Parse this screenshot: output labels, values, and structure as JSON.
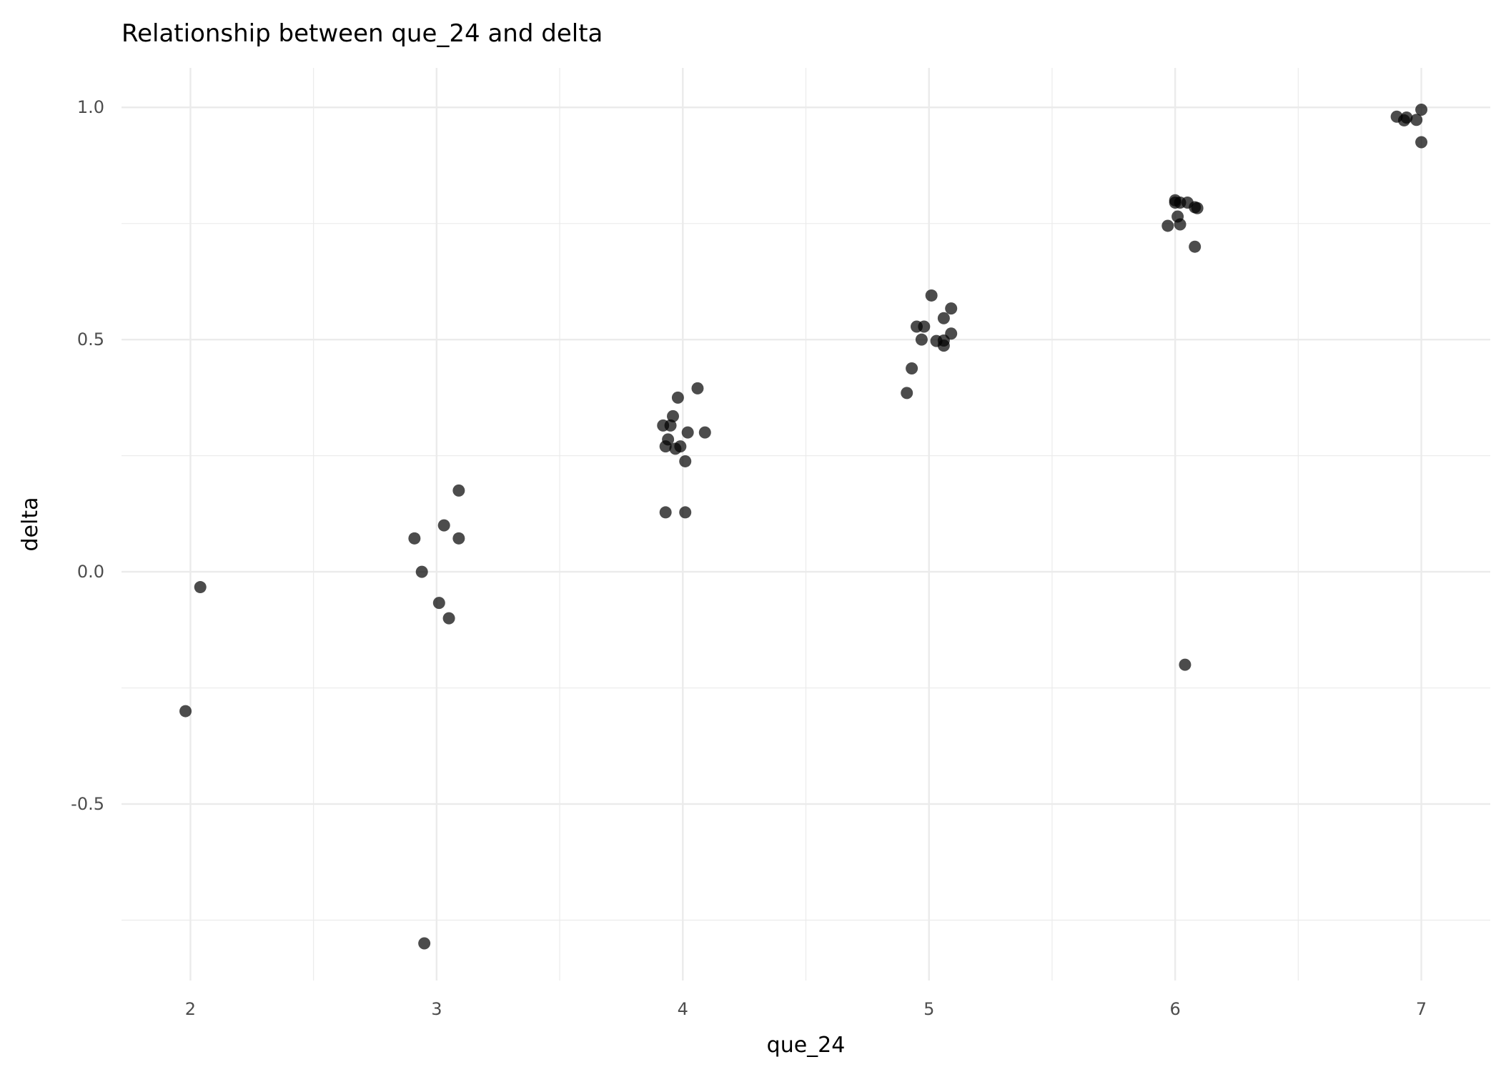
{
  "chart_data": {
    "type": "scatter",
    "title": "Relationship between que_24 and delta",
    "xlabel": "que_24",
    "ylabel": "delta",
    "xlim": [
      1.72,
      7.28
    ],
    "ylim": [
      -0.88,
      1.085
    ],
    "x_ticks": [
      2,
      3,
      4,
      5,
      6,
      7
    ],
    "x_tick_labels": [
      "2",
      "3",
      "4",
      "5",
      "6",
      "7"
    ],
    "y_ticks": [
      -0.5,
      0.0,
      0.5,
      1.0
    ],
    "y_tick_labels": [
      "-0.5",
      "0.0",
      "0.5",
      "1.0"
    ],
    "x_minor_ticks": [
      2.5,
      3.5,
      4.5,
      5.5,
      6.5
    ],
    "y_minor_ticks": [
      -0.75,
      -0.25,
      0.25,
      0.75
    ],
    "grid": true,
    "point_color": "#000000",
    "point_opacity": 0.7,
    "points": [
      {
        "x": 1.98,
        "y": -0.3
      },
      {
        "x": 2.04,
        "y": -0.033
      },
      {
        "x": 2.91,
        "y": 0.072
      },
      {
        "x": 2.94,
        "y": 0.0
      },
      {
        "x": 2.95,
        "y": -0.8
      },
      {
        "x": 3.01,
        "y": -0.067
      },
      {
        "x": 3.03,
        "y": 0.1
      },
      {
        "x": 3.05,
        "y": -0.1
      },
      {
        "x": 3.09,
        "y": 0.175
      },
      {
        "x": 3.09,
        "y": 0.072
      },
      {
        "x": 3.92,
        "y": 0.315
      },
      {
        "x": 3.93,
        "y": 0.27
      },
      {
        "x": 3.93,
        "y": 0.128
      },
      {
        "x": 3.94,
        "y": 0.285
      },
      {
        "x": 3.95,
        "y": 0.315
      },
      {
        "x": 3.96,
        "y": 0.335
      },
      {
        "x": 3.97,
        "y": 0.265
      },
      {
        "x": 3.98,
        "y": 0.375
      },
      {
        "x": 3.99,
        "y": 0.27
      },
      {
        "x": 4.01,
        "y": 0.128
      },
      {
        "x": 4.01,
        "y": 0.238
      },
      {
        "x": 4.02,
        "y": 0.3
      },
      {
        "x": 4.06,
        "y": 0.395
      },
      {
        "x": 4.09,
        "y": 0.3
      },
      {
        "x": 4.91,
        "y": 0.385
      },
      {
        "x": 4.93,
        "y": 0.438
      },
      {
        "x": 4.95,
        "y": 0.528
      },
      {
        "x": 4.97,
        "y": 0.5
      },
      {
        "x": 4.98,
        "y": 0.528
      },
      {
        "x": 5.01,
        "y": 0.595
      },
      {
        "x": 5.03,
        "y": 0.497
      },
      {
        "x": 5.06,
        "y": 0.546
      },
      {
        "x": 5.06,
        "y": 0.487
      },
      {
        "x": 5.06,
        "y": 0.498
      },
      {
        "x": 5.09,
        "y": 0.513
      },
      {
        "x": 5.09,
        "y": 0.567
      },
      {
        "x": 5.97,
        "y": 0.745
      },
      {
        "x": 6.0,
        "y": 0.795
      },
      {
        "x": 6.0,
        "y": 0.8
      },
      {
        "x": 6.01,
        "y": 0.765
      },
      {
        "x": 6.02,
        "y": 0.795
      },
      {
        "x": 6.02,
        "y": 0.748
      },
      {
        "x": 6.04,
        "y": -0.2
      },
      {
        "x": 6.05,
        "y": 0.795
      },
      {
        "x": 6.08,
        "y": 0.785
      },
      {
        "x": 6.08,
        "y": 0.7
      },
      {
        "x": 6.09,
        "y": 0.783
      },
      {
        "x": 6.9,
        "y": 0.98
      },
      {
        "x": 6.93,
        "y": 0.972
      },
      {
        "x": 6.94,
        "y": 0.978
      },
      {
        "x": 6.98,
        "y": 0.973
      },
      {
        "x": 7.0,
        "y": 0.995
      },
      {
        "x": 7.0,
        "y": 0.925
      }
    ]
  }
}
